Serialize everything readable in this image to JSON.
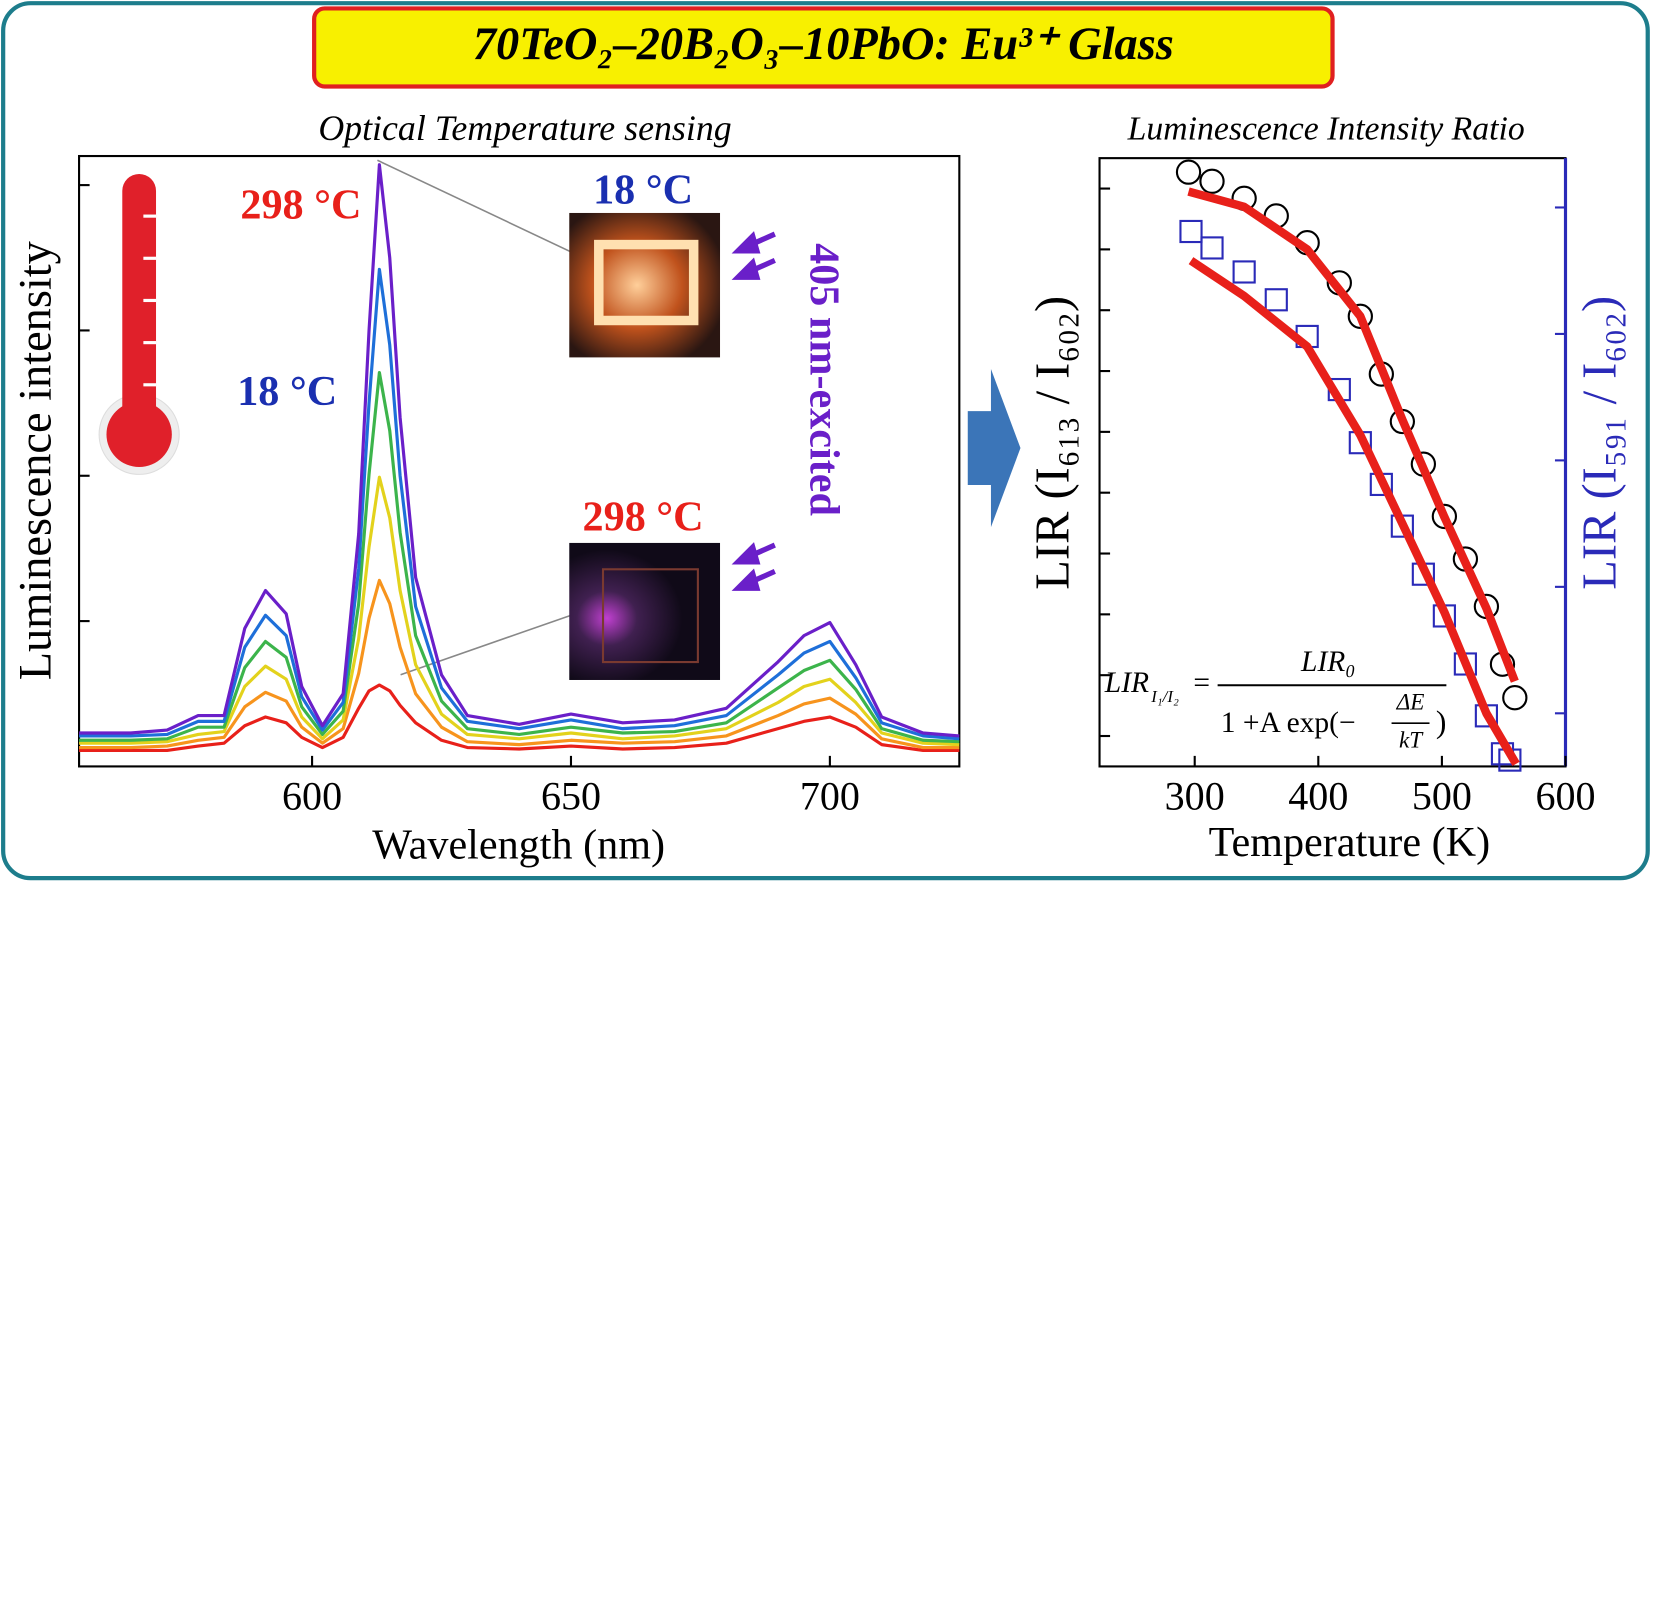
{
  "title": "70TeO₂–20B₂O₃–10PbO: Eu³⁺ Glass",
  "chart_data": [
    {
      "type": "line",
      "title": "Optical Temperature sensing",
      "x_label": "Wavelength (nm)",
      "y_label": "Luminescence intensity",
      "xlim": [
        555,
        725
      ],
      "xticks": [
        600,
        650,
        700
      ],
      "ylim": [
        0,
        4.2
      ],
      "yticks": [
        1,
        2,
        3,
        4
      ],
      "ytick_labels": false,
      "x": [
        555,
        565,
        572,
        578,
        583,
        587,
        591,
        595,
        598,
        602,
        606,
        609,
        611,
        613,
        615,
        617,
        620,
        625,
        630,
        640,
        650,
        660,
        670,
        680,
        690,
        695,
        700,
        705,
        710,
        718,
        725
      ],
      "series": [
        {
          "color": "#e8201a",
          "values": [
            0.11,
            0.11,
            0.11,
            0.14,
            0.16,
            0.28,
            0.34,
            0.3,
            0.2,
            0.13,
            0.2,
            0.4,
            0.52,
            0.56,
            0.52,
            0.42,
            0.3,
            0.18,
            0.13,
            0.12,
            0.14,
            0.12,
            0.13,
            0.16,
            0.26,
            0.31,
            0.34,
            0.27,
            0.15,
            0.11,
            0.11
          ]
        },
        {
          "color": "#f7941d",
          "values": [
            0.13,
            0.13,
            0.14,
            0.18,
            0.2,
            0.41,
            0.51,
            0.45,
            0.27,
            0.16,
            0.26,
            0.64,
            1.02,
            1.28,
            1.12,
            0.82,
            0.5,
            0.27,
            0.17,
            0.15,
            0.18,
            0.16,
            0.17,
            0.21,
            0.35,
            0.43,
            0.47,
            0.36,
            0.19,
            0.13,
            0.13
          ]
        },
        {
          "color": "#e3d21c",
          "values": [
            0.16,
            0.16,
            0.17,
            0.22,
            0.24,
            0.55,
            0.69,
            0.6,
            0.34,
            0.19,
            0.32,
            0.88,
            1.51,
            1.99,
            1.71,
            1.21,
            0.7,
            0.36,
            0.22,
            0.19,
            0.23,
            0.19,
            0.21,
            0.26,
            0.44,
            0.55,
            0.6,
            0.44,
            0.23,
            0.16,
            0.15
          ]
        },
        {
          "color": "#3cb44b",
          "values": [
            0.18,
            0.18,
            0.19,
            0.27,
            0.27,
            0.68,
            0.86,
            0.75,
            0.41,
            0.22,
            0.38,
            1.12,
            2.01,
            2.71,
            2.31,
            1.61,
            0.9,
            0.45,
            0.26,
            0.22,
            0.27,
            0.23,
            0.24,
            0.3,
            0.54,
            0.66,
            0.73,
            0.53,
            0.26,
            0.18,
            0.17
          ]
        },
        {
          "color": "#1e6fd9",
          "values": [
            0.21,
            0.21,
            0.22,
            0.31,
            0.31,
            0.82,
            1.04,
            0.9,
            0.48,
            0.25,
            0.44,
            1.36,
            2.5,
            3.42,
            2.9,
            2.0,
            1.1,
            0.54,
            0.31,
            0.26,
            0.32,
            0.26,
            0.28,
            0.35,
            0.63,
            0.78,
            0.86,
            0.61,
            0.3,
            0.21,
            0.19
          ]
        },
        {
          "color": "#6a1fc9",
          "values": [
            0.23,
            0.23,
            0.25,
            0.35,
            0.35,
            0.95,
            1.21,
            1.05,
            0.55,
            0.28,
            0.5,
            1.6,
            3.0,
            4.14,
            3.5,
            2.4,
            1.3,
            0.63,
            0.35,
            0.29,
            0.36,
            0.3,
            0.32,
            0.4,
            0.72,
            0.9,
            0.99,
            0.7,
            0.34,
            0.23,
            0.21
          ]
        }
      ],
      "annotations": [
        {
          "text": "298 °C",
          "color": "#e8201a"
        },
        {
          "text": "18 °C",
          "color": "#1a2fb0"
        },
        {
          "text": "18 °C",
          "color": "#1a2fb0"
        },
        {
          "text": "298 °C",
          "color": "#e8201a"
        },
        {
          "text": "405 nm-excited",
          "color": "#6a1fc9"
        }
      ]
    },
    {
      "type": "scatter",
      "title": "Luminescence Intensity Ratio",
      "x_label": "Temperature (K)",
      "y_label": "LIR (I₆₁₃ / I₆₀₂)",
      "y2_label": "LIR (I₅₉₁ / I₆₀₂)",
      "xlim": [
        223,
        600
      ],
      "xticks": [
        300,
        400,
        500,
        600
      ],
      "ylim": [
        0.5,
        10.5
      ],
      "yticks": [
        1,
        2,
        3,
        4,
        5,
        6,
        7,
        8,
        9,
        10
      ],
      "y2lim": [
        0.58,
        5.39
      ],
      "y2ticks": [
        1,
        2,
        3,
        4,
        5
      ],
      "ytick_labels": false,
      "series": [
        {
          "marker": "circle",
          "color": "#000000",
          "x": [
            295,
            314,
            340,
            366,
            391,
            417,
            434,
            451,
            468,
            485,
            502,
            519,
            536,
            549,
            559
          ],
          "values": [
            10.27,
            10.12,
            9.84,
            9.55,
            9.11,
            8.45,
            7.9,
            6.95,
            6.17,
            5.47,
            4.61,
            3.91,
            3.13,
            2.18,
            1.63
          ]
        },
        {
          "marker": "square",
          "color": "#2a2ab8",
          "axis": "y2",
          "x": [
            297,
            314,
            340,
            366,
            391,
            417,
            434,
            451,
            468,
            485,
            502,
            519,
            536,
            549,
            555
          ],
          "values": [
            4.81,
            4.68,
            4.49,
            4.27,
            3.98,
            3.56,
            3.14,
            2.81,
            2.48,
            2.1,
            1.77,
            1.39,
            0.98,
            0.68,
            0.63
          ]
        },
        {
          "style": "line",
          "color": "#e8201a",
          "x": [
            295,
            340,
            391,
            434,
            468,
            502,
            536,
            559
          ],
          "values": [
            9.95,
            9.7,
            9.0,
            7.9,
            6.2,
            4.6,
            3.1,
            1.9
          ]
        },
        {
          "style": "line",
          "color": "#e8201a",
          "axis": "y2",
          "x": [
            297,
            340,
            391,
            434,
            468,
            502,
            536,
            560
          ],
          "values": [
            4.58,
            4.3,
            3.9,
            3.2,
            2.5,
            1.8,
            1.0,
            0.6
          ]
        }
      ],
      "formula": {
        "lhs": "LIR",
        "lhs_sub": "I₁/I₂",
        "equals": "=",
        "numerator": "LIR₀",
        "denom_left": "1 +A exp(−",
        "frac_num": "ΔE",
        "frac_den": "kT",
        "denom_right": ")"
      }
    }
  ]
}
